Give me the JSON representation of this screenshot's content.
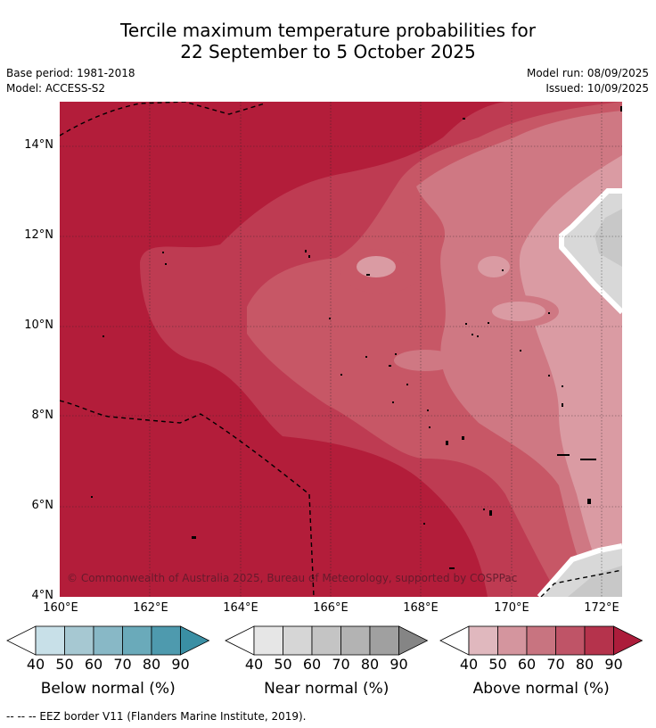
{
  "title_line1": "Tercile maximum temperature probabilities for",
  "title_line2": "22 September to 5 October 2025",
  "base_period": "Base period: 1981-2018",
  "model": "Model: ACCESS-S2",
  "model_run": "Model run: 08/09/2025",
  "issued": "Issued: 10/09/2025",
  "lat_ticks": [
    "14°N",
    "12°N",
    "10°N",
    "8°N",
    "6°N",
    "4°N"
  ],
  "lon_ticks": [
    "160°E",
    "162°E",
    "164°E",
    "166°E",
    "168°E",
    "170°E",
    "172°E"
  ],
  "copyright": "© Commonwealth of Australia 2025, Bureau of Meteorology, supported by COSPPac",
  "colorbars": [
    {
      "label": "Below normal (%)",
      "ticks": [
        "40",
        "50",
        "60",
        "70",
        "80",
        "90"
      ],
      "colors": [
        "#c8e0e8",
        "#a6c8d2",
        "#88b8c6",
        "#6aaaba",
        "#4e9aae",
        "#3a8fa4"
      ]
    },
    {
      "label": "Near normal (%)",
      "ticks": [
        "40",
        "50",
        "60",
        "70",
        "80",
        "90"
      ],
      "colors": [
        "#e6e6e6",
        "#d6d6d6",
        "#c4c4c4",
        "#b3b3b3",
        "#a0a0a0",
        "#858585"
      ]
    },
    {
      "label": "Above normal (%)",
      "ticks": [
        "40",
        "50",
        "60",
        "70",
        "80",
        "90"
      ],
      "colors": [
        "#e0b8be",
        "#d4959e",
        "#c87480",
        "#bf5467",
        "#b5334c",
        "#ac1d3b"
      ]
    }
  ],
  "footnote": "-- -- -- EEZ border V11 (Flanders Marine Institute, 2019).",
  "colors": {
    "above_90": "#b31d3a",
    "above_80": "#be3b52",
    "above_70": "#c75766",
    "above_60": "#cf7883",
    "above_50": "#da9ba3",
    "near_50": "#d8d8d8",
    "near_60": "#c8c8c8",
    "near_70": "#b8b8b8"
  }
}
